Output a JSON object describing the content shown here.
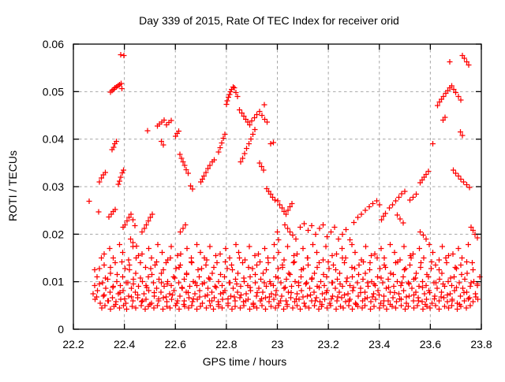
{
  "chart_data": {
    "type": "scatter",
    "title": "Day 339 of 2015, Rate Of TEC Index for receiver orid",
    "xlabel": "GPS time / hours",
    "ylabel": "ROTI / TECUs",
    "xlim": [
      22.2,
      23.8
    ],
    "ylim": [
      0,
      0.06
    ],
    "xtick_values": [
      22.2,
      22.4,
      22.6,
      22.8,
      23,
      23.2,
      23.4,
      23.6,
      23.8
    ],
    "xtick_labels": [
      "22.2",
      "22.4",
      "22.6",
      "22.8",
      "23",
      "23.2",
      "23.4",
      "23.6",
      "23.8"
    ],
    "ytick_values": [
      0,
      0.01,
      0.02,
      0.03,
      0.04,
      0.05,
      0.06
    ],
    "ytick_labels": [
      "0",
      "0.01",
      "0.02",
      "0.03",
      "0.04",
      "0.05",
      "0.06"
    ],
    "grid": {
      "show": true,
      "style": "dashed",
      "color": "#a8a8a8"
    },
    "legend": {
      "show": false
    },
    "marker": {
      "shape": "plus",
      "color": "#ff0000",
      "size": 7
    },
    "border_color": "#000000",
    "points": [
      [
        22.262,
        0.0269
      ],
      [
        22.299,
        0.0247
      ],
      [
        22.302,
        0.031
      ],
      [
        22.31,
        0.0318
      ],
      [
        22.318,
        0.0325
      ],
      [
        22.326,
        0.033
      ],
      [
        22.34,
        0.0236
      ],
      [
        22.348,
        0.0242
      ],
      [
        22.356,
        0.0248
      ],
      [
        22.364,
        0.0252
      ],
      [
        22.352,
        0.0378
      ],
      [
        22.358,
        0.0383
      ],
      [
        22.363,
        0.039
      ],
      [
        22.368,
        0.0395
      ],
      [
        22.345,
        0.0499
      ],
      [
        22.352,
        0.0502
      ],
      [
        22.358,
        0.0505
      ],
      [
        22.363,
        0.0508
      ],
      [
        22.369,
        0.051
      ],
      [
        22.375,
        0.0512
      ],
      [
        22.381,
        0.0515
      ],
      [
        22.387,
        0.0517
      ],
      [
        22.391,
        0.0506
      ],
      [
        22.386,
        0.0578
      ],
      [
        22.398,
        0.0576
      ],
      [
        22.376,
        0.0305
      ],
      [
        22.381,
        0.0312
      ],
      [
        22.386,
        0.032
      ],
      [
        22.392,
        0.0329
      ],
      [
        22.397,
        0.0335
      ],
      [
        22.395,
        0.0215
      ],
      [
        22.402,
        0.022
      ],
      [
        22.41,
        0.0228
      ],
      [
        22.418,
        0.0235
      ],
      [
        22.426,
        0.0242
      ],
      [
        22.434,
        0.023
      ],
      [
        22.441,
        0.0218
      ],
      [
        22.425,
        0.019
      ],
      [
        22.433,
        0.0182
      ],
      [
        22.448,
        0.0175
      ],
      [
        22.47,
        0.0205
      ],
      [
        22.478,
        0.0212
      ],
      [
        22.486,
        0.022
      ],
      [
        22.494,
        0.0228
      ],
      [
        22.502,
        0.0235
      ],
      [
        22.51,
        0.0242
      ],
      [
        22.491,
        0.0418
      ],
      [
        22.53,
        0.0428
      ],
      [
        22.538,
        0.0432
      ],
      [
        22.547,
        0.0436
      ],
      [
        22.556,
        0.044
      ],
      [
        22.565,
        0.043
      ],
      [
        22.574,
        0.0435
      ],
      [
        22.583,
        0.0439
      ],
      [
        22.545,
        0.0395
      ],
      [
        22.553,
        0.0388
      ],
      [
        22.601,
        0.0406
      ],
      [
        22.607,
        0.0412
      ],
      [
        22.613,
        0.0417
      ],
      [
        22.618,
        0.0368
      ],
      [
        22.624,
        0.036
      ],
      [
        22.63,
        0.0352
      ],
      [
        22.637,
        0.0345
      ],
      [
        22.643,
        0.0336
      ],
      [
        22.65,
        0.0328
      ],
      [
        22.66,
        0.0302
      ],
      [
        22.668,
        0.0295
      ],
      [
        22.62,
        0.0205
      ],
      [
        22.63,
        0.0212
      ],
      [
        22.64,
        0.022
      ],
      [
        22.7,
        0.031
      ],
      [
        22.706,
        0.0316
      ],
      [
        22.712,
        0.0322
      ],
      [
        22.72,
        0.033
      ],
      [
        22.728,
        0.0338
      ],
      [
        22.736,
        0.0345
      ],
      [
        22.744,
        0.0352
      ],
      [
        22.752,
        0.0356
      ],
      [
        22.77,
        0.0373
      ],
      [
        22.776,
        0.0382
      ],
      [
        22.782,
        0.0392
      ],
      [
        22.788,
        0.0402
      ],
      [
        22.794,
        0.041
      ],
      [
        22.8,
        0.0473
      ],
      [
        22.804,
        0.0481
      ],
      [
        22.808,
        0.0488
      ],
      [
        22.812,
        0.0494
      ],
      [
        22.816,
        0.05
      ],
      [
        22.82,
        0.0505
      ],
      [
        22.826,
        0.051
      ],
      [
        22.832,
        0.0508
      ],
      [
        22.838,
        0.0498
      ],
      [
        22.844,
        0.049
      ],
      [
        22.852,
        0.0462
      ],
      [
        22.86,
        0.0455
      ],
      [
        22.868,
        0.0448
      ],
      [
        22.876,
        0.0442
      ],
      [
        22.884,
        0.0436
      ],
      [
        22.892,
        0.043
      ],
      [
        22.9,
        0.0438
      ],
      [
        22.91,
        0.0445
      ],
      [
        22.92,
        0.0452
      ],
      [
        22.93,
        0.0458
      ],
      [
        22.94,
        0.045
      ],
      [
        22.949,
        0.0472
      ],
      [
        22.95,
        0.0442
      ],
      [
        22.96,
        0.0436
      ],
      [
        22.856,
        0.0352
      ],
      [
        22.864,
        0.036
      ],
      [
        22.872,
        0.037
      ],
      [
        22.88,
        0.038
      ],
      [
        22.888,
        0.039
      ],
      [
        22.896,
        0.04
      ],
      [
        22.904,
        0.041
      ],
      [
        22.912,
        0.042
      ],
      [
        22.93,
        0.035
      ],
      [
        22.938,
        0.0342
      ],
      [
        22.946,
        0.0335
      ],
      [
        22.974,
        0.039
      ],
      [
        22.984,
        0.0393
      ],
      [
        22.958,
        0.0296
      ],
      [
        22.966,
        0.029
      ],
      [
        22.974,
        0.0284
      ],
      [
        22.982,
        0.0278
      ],
      [
        22.99,
        0.0272
      ],
      [
        23.002,
        0.027
      ],
      [
        23.01,
        0.0262
      ],
      [
        23.018,
        0.0255
      ],
      [
        23.026,
        0.0248
      ],
      [
        23.034,
        0.0242
      ],
      [
        23.042,
        0.025
      ],
      [
        23.05,
        0.0258
      ],
      [
        23.058,
        0.0264
      ],
      [
        23.0,
        0.0205
      ],
      [
        23.004,
        0.0188
      ],
      [
        23.03,
        0.022
      ],
      [
        23.04,
        0.0212
      ],
      [
        23.05,
        0.0205
      ],
      [
        23.06,
        0.0198
      ],
      [
        23.072,
        0.019
      ],
      [
        23.09,
        0.0215
      ],
      [
        23.105,
        0.0222
      ],
      [
        23.12,
        0.0208
      ],
      [
        23.135,
        0.0218
      ],
      [
        23.15,
        0.02
      ],
      [
        23.165,
        0.0212
      ],
      [
        23.18,
        0.022
      ],
      [
        23.195,
        0.0195
      ],
      [
        23.21,
        0.0205
      ],
      [
        23.225,
        0.0215
      ],
      [
        23.24,
        0.019
      ],
      [
        23.255,
        0.02
      ],
      [
        23.27,
        0.021
      ],
      [
        23.285,
        0.0188
      ],
      [
        23.3,
        0.0225
      ],
      [
        23.315,
        0.0235
      ],
      [
        23.33,
        0.0242
      ],
      [
        23.345,
        0.025
      ],
      [
        23.36,
        0.0258
      ],
      [
        23.375,
        0.0264
      ],
      [
        23.39,
        0.027
      ],
      [
        23.401,
        0.0262
      ],
      [
        23.408,
        0.023
      ],
      [
        23.416,
        0.0238
      ],
      [
        23.424,
        0.0244
      ],
      [
        23.44,
        0.0255
      ],
      [
        23.452,
        0.0262
      ],
      [
        23.464,
        0.027
      ],
      [
        23.476,
        0.0278
      ],
      [
        23.488,
        0.0285
      ],
      [
        23.5,
        0.029
      ],
      [
        23.47,
        0.024
      ],
      [
        23.482,
        0.0232
      ],
      [
        23.494,
        0.0224
      ],
      [
        23.52,
        0.0272
      ],
      [
        23.532,
        0.0278
      ],
      [
        23.544,
        0.0284
      ],
      [
        23.56,
        0.0308
      ],
      [
        23.568,
        0.0314
      ],
      [
        23.576,
        0.032
      ],
      [
        23.584,
        0.0326
      ],
      [
        23.592,
        0.0332
      ],
      [
        23.56,
        0.0205
      ],
      [
        23.572,
        0.0198
      ],
      [
        23.584,
        0.019
      ],
      [
        23.61,
        0.039
      ],
      [
        23.628,
        0.0471
      ],
      [
        23.636,
        0.0478
      ],
      [
        23.644,
        0.0484
      ],
      [
        23.652,
        0.049
      ],
      [
        23.66,
        0.0496
      ],
      [
        23.668,
        0.0502
      ],
      [
        23.676,
        0.0508
      ],
      [
        23.684,
        0.0512
      ],
      [
        23.692,
        0.0505
      ],
      [
        23.7,
        0.0498
      ],
      [
        23.71,
        0.049
      ],
      [
        23.72,
        0.0482
      ],
      [
        23.65,
        0.044
      ],
      [
        23.658,
        0.0446
      ],
      [
        23.718,
        0.0415
      ],
      [
        23.726,
        0.0408
      ],
      [
        23.676,
        0.0563
      ],
      [
        23.726,
        0.0576
      ],
      [
        23.734,
        0.057
      ],
      [
        23.742,
        0.0563
      ],
      [
        23.75,
        0.0556
      ],
      [
        23.69,
        0.0335
      ],
      [
        23.7,
        0.0328
      ],
      [
        23.71,
        0.0322
      ],
      [
        23.72,
        0.0316
      ],
      [
        23.73,
        0.031
      ],
      [
        23.742,
        0.0304
      ],
      [
        23.754,
        0.0298
      ],
      [
        23.76,
        0.0215
      ],
      [
        23.768,
        0.0208
      ],
      [
        23.776,
        0.02
      ],
      [
        23.784,
        0.0192
      ]
    ],
    "band_layers": [
      {
        "x_start": 22.277,
        "x_end": 23.795,
        "x_step": 0.005,
        "y_pattern": [
          0.0075,
          0.0092,
          0.0063,
          0.011,
          0.0081,
          0.0128,
          0.0055,
          0.0098,
          0.007,
          0.0135,
          0.0086,
          0.006,
          0.0105,
          0.0078,
          0.0118,
          0.0066,
          0.009,
          0.014,
          0.0058,
          0.01
        ],
        "x_jitter_pattern": [
          0,
          0.0021,
          -0.0017,
          0.0013,
          -0.0022,
          0.0009,
          -0.0011,
          0.0018,
          0.0004,
          -0.0019
        ]
      },
      {
        "x_start": 22.283,
        "x_end": 23.79,
        "x_step": 0.009,
        "y_pattern": [
          0.0125,
          0.0068,
          0.0095,
          0.015,
          0.0072,
          0.0108,
          0.006,
          0.013,
          0.0088,
          0.0052,
          0.0115,
          0.0077,
          0.0142,
          0.0064,
          0.0098
        ],
        "x_jitter_pattern": [
          0.001,
          -0.0014,
          0.0006,
          -0.0008,
          0.0016,
          -0.0021,
          0.0012,
          0,
          -0.0005
        ]
      },
      {
        "x_start": 22.32,
        "x_end": 23.76,
        "x_step": 0.019,
        "y_pattern": [
          0.0158,
          0.017,
          0.015,
          0.0178,
          0.0162,
          0.0146,
          0.0174,
          0.0155
        ],
        "x_jitter_pattern": [
          0,
          0.003,
          -0.002,
          0.004,
          -0.003,
          0.002
        ]
      },
      {
        "x_start": 22.31,
        "x_end": 23.77,
        "x_step": 0.017,
        "y_pattern": [
          0.0045,
          0.005,
          0.0042,
          0.0048
        ],
        "x_jitter_pattern": [
          0.002,
          -0.003,
          0.001,
          -0.002,
          0.003
        ]
      }
    ]
  }
}
